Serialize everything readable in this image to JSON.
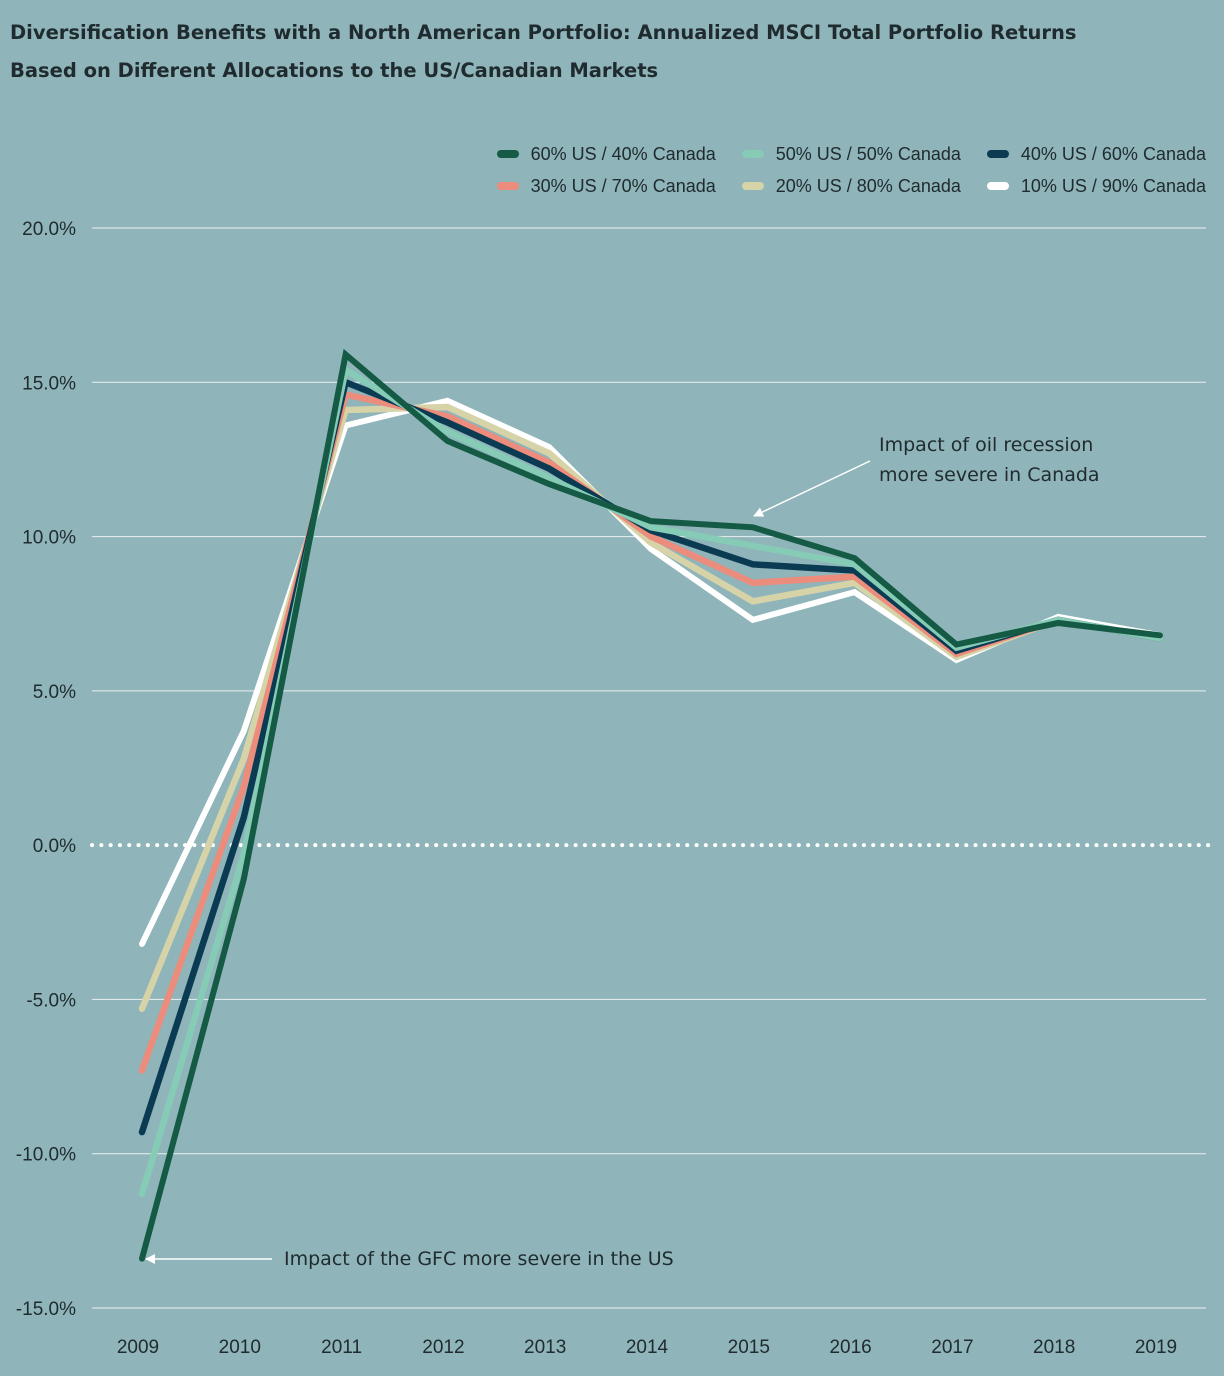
{
  "chart_data": {
    "type": "line",
    "title": "Diversification Benefits with a North American Portfolio: Annualized MSCI Total Portfolio Returns Based on Different Allocations to the US/Canadian Markets",
    "xlabel": "",
    "ylabel": "",
    "categories": [
      "2009",
      "2010",
      "2011",
      "2012",
      "2013",
      "2014",
      "2015",
      "2016",
      "2017",
      "2018",
      "2019"
    ],
    "ylim": [
      -15,
      20
    ],
    "yticks": [
      20,
      15,
      10,
      5,
      0,
      -5,
      -10,
      -15
    ],
    "ytick_labels": [
      "20.0%",
      "15.0%",
      "10.0%",
      "5.0%",
      "0.0%",
      "-5.0%",
      "-10.0%",
      "-15.0%"
    ],
    "grid": "horizontal",
    "zero_line": "dotted",
    "legend_position": "top-right",
    "series": [
      {
        "name": "60% US / 40% Canada",
        "color": "#145a44",
        "values": [
          -13.4,
          -1.1,
          15.9,
          13.1,
          11.7,
          10.5,
          10.3,
          9.3,
          6.5,
          7.2,
          6.8
        ]
      },
      {
        "name": "50% US / 50% Canada",
        "color": "#86cbb6",
        "values": [
          -11.3,
          -0.3,
          15.4,
          13.4,
          11.9,
          10.3,
          9.7,
          9.1,
          6.4,
          7.3,
          6.7
        ]
      },
      {
        "name": "40% US / 60% Canada",
        "color": "#0b3b52",
        "values": [
          -9.3,
          0.9,
          15.0,
          13.7,
          12.2,
          10.2,
          9.1,
          8.9,
          6.3,
          7.3,
          6.7
        ]
      },
      {
        "name": "30% US / 70% Canada",
        "color": "#ec8c7c",
        "values": [
          -7.3,
          1.9,
          14.6,
          13.9,
          12.4,
          10.0,
          8.5,
          8.7,
          6.2,
          7.3,
          6.7
        ]
      },
      {
        "name": "20% US / 80% Canada",
        "color": "#d6d3a8",
        "values": [
          -5.3,
          2.8,
          14.1,
          14.2,
          12.7,
          9.8,
          7.9,
          8.5,
          6.1,
          7.3,
          6.7
        ]
      },
      {
        "name": "10% US / 90% Canada",
        "color": "#ffffff",
        "values": [
          -3.2,
          3.7,
          13.6,
          14.4,
          12.9,
          9.6,
          7.3,
          8.2,
          6.0,
          7.4,
          6.8
        ]
      }
    ],
    "annotations": [
      {
        "id": "oil",
        "lines": [
          "Impact of oil recession",
          "more severe in Canada"
        ],
        "target": {
          "x": "2015",
          "y": 10.4
        }
      },
      {
        "id": "gfc",
        "lines": [
          "Impact of the GFC more severe in the US"
        ],
        "target": {
          "x": "2009",
          "y": -13.4
        }
      }
    ]
  }
}
